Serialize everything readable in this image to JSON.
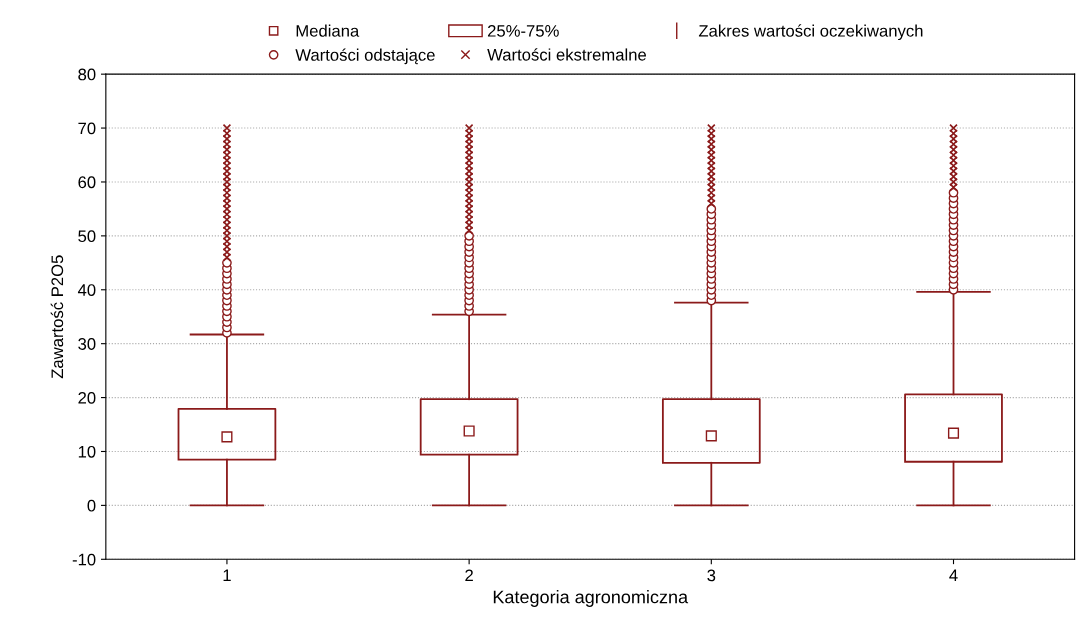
{
  "chart_data": {
    "type": "box",
    "categories": [
      "1",
      "2",
      "3",
      "4"
    ],
    "xlabel": "Kategoria agronomiczna",
    "ylabel": "Zawartość P2O5",
    "ylim": [
      -10,
      80
    ],
    "yticks": [
      -10,
      0,
      10,
      20,
      30,
      40,
      50,
      60,
      70,
      80
    ],
    "grid": "y",
    "legend": "top",
    "annotations": [
      "Mediana",
      "25%-75%",
      "Zakres wartości oczekiwanych",
      "Wartości odstające"
    ],
    "series": [
      {
        "color": "#8b1a1a",
        "boxes": [
          {
            "low": 0,
            "q1": 8.5,
            "median": 12.7,
            "q3": 17.9,
            "high": 31.7,
            "outliers": [
              32,
              33,
              34,
              35,
              36,
              37,
              38,
              39,
              40,
              41,
              42,
              43,
              44,
              45
            ]
          },
          {
            "low": 0,
            "q1": 9.4,
            "median": 13.8,
            "q3": 19.7,
            "high": 35.4,
            "outliers": [
              36,
              37,
              38,
              39,
              40,
              41,
              42,
              43,
              44,
              45,
              46,
              47,
              48,
              49,
              50
            ]
          },
          {
            "low": 0,
            "q1": 7.9,
            "median": 12.9,
            "q3": 19.7,
            "high": 37.6,
            "outliers": [
              38,
              39,
              40,
              41,
              42,
              43,
              44,
              45,
              46,
              47,
              48,
              49,
              50,
              51,
              52,
              53,
              54,
              55
            ]
          },
          {
            "low": 0,
            "q1": 8.1,
            "median": 13.4,
            "q3": 20.6,
            "high": 39.6,
            "outliers": [
              40,
              41,
              42,
              43,
              44,
              45,
              46,
              47,
              48,
              49,
              50,
              51,
              52,
              53,
              54,
              55,
              56,
              57,
              58
            ]
          }
        ]
      },
      {
        "type": "scatter",
        "name": "Wartości ekstremalne",
        "color": "#8b1a1a",
        "marker": "cross",
        "x": [
          "1",
          "1",
          "1",
          "1",
          "1",
          "1",
          "1",
          "1",
          "1",
          "1",
          "1",
          "1",
          "1",
          "1",
          "1",
          "1",
          "1",
          "1",
          "1",
          "1",
          "1",
          "1",
          "1",
          "1",
          "1",
          "2",
          "2",
          "2",
          "2",
          "2",
          "2",
          "2",
          "2",
          "2",
          "2",
          "2",
          "2",
          "2",
          "2",
          "2",
          "2",
          "2",
          "2",
          "2",
          "2",
          "3",
          "3",
          "3",
          "3",
          "3",
          "3",
          "3",
          "3",
          "3",
          "3",
          "3",
          "3",
          "3",
          "3",
          "3",
          "4",
          "4",
          "4",
          "4",
          "4",
          "4",
          "4",
          "4",
          "4",
          "4",
          "4",
          "4"
        ],
        "values": [
          46,
          47,
          48,
          49,
          50,
          51,
          52,
          53,
          54,
          55,
          56,
          57,
          58,
          59,
          60,
          61,
          62,
          63,
          64,
          65,
          66,
          67,
          68,
          69,
          70,
          51,
          52,
          53,
          54,
          55,
          56,
          57,
          58,
          59,
          60,
          61,
          62,
          63,
          64,
          65,
          66,
          67,
          68,
          69,
          70,
          56,
          57,
          58,
          59,
          60,
          61,
          62,
          63,
          64,
          65,
          66,
          67,
          68,
          69,
          70,
          59,
          60,
          61,
          62,
          63,
          64,
          65,
          66,
          67,
          68,
          69,
          70
        ]
      }
    ]
  }
}
